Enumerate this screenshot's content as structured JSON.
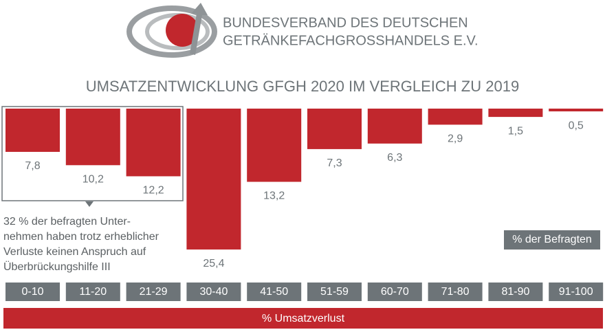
{
  "header": {
    "org_name": [
      "BUNDESVERBAND DES DEUTSCHEN",
      "GETRÄNKEFACHGROSSHANDELS E.V."
    ]
  },
  "chart_data": {
    "type": "bar",
    "title": "UMSATZENTWICKLUNG GFGH 2020 IM VERGLEICH ZU 2019",
    "categories": [
      "0-10",
      "11-20",
      "21-29",
      "30-40",
      "41-50",
      "51-59",
      "60-70",
      "71-80",
      "81-90",
      "91-100"
    ],
    "values": [
      7.8,
      10.2,
      12.2,
      25.4,
      13.2,
      7.3,
      6.3,
      2.9,
      1.5,
      0.5
    ],
    "value_labels": [
      "7,8",
      "10,2",
      "12,2",
      "25,4",
      "13,2",
      "7,3",
      "6,3",
      "2,9",
      "1,5",
      "0,5"
    ],
    "color": "#c1272d",
    "x_label": "% Umsatzverlust",
    "y_label": "% der Befragten",
    "annotation": [
      "32 % der befragten Unter-",
      "nehmen haben trotz erheblicher",
      "Verluste keinen Anspruch auf",
      "Überbrückungshilfe III"
    ]
  }
}
